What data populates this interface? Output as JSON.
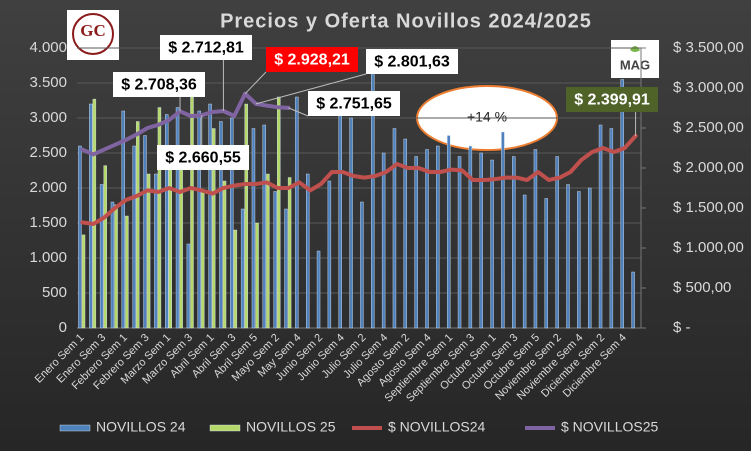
{
  "chart_data": {
    "type": "bar-line",
    "title": "Precios y Oferta Novillos 2024/2025",
    "logos": [
      "GC",
      "MAG"
    ],
    "annotations": [
      "+14 %"
    ],
    "categories": [
      "Enero Sem 1",
      null,
      "Enero Sem 3",
      null,
      "Febrero Sem 1",
      null,
      "Febrero Sem 3",
      null,
      "Marzo Sem 1",
      null,
      "Marzo Sem 3",
      null,
      "Abril Sem 1",
      null,
      "Abril Sem 3",
      null,
      "Abril Sem 5",
      null,
      "Mayo Sem 2",
      null,
      "May Sem 4",
      null,
      "Junio Sem 2",
      null,
      "Junio Sem 4",
      null,
      "Julio Sem 2",
      null,
      "Julio Sem 4",
      null,
      "Agosto Sem 2",
      null,
      "Agosto Sem 4",
      null,
      "Septiembre Sem 1",
      null,
      "Septiembre Sem 3",
      null,
      "Octubre Sem 1",
      null,
      "Octubre Sem 3",
      null,
      "Octubre Sem 5",
      null,
      "Noviembre Sem 2",
      null,
      "Noviembre Sem 4",
      null,
      "Diciembre Sem 2",
      null,
      "Diciembre Sem 4",
      null
    ],
    "ylim": [
      0,
      4000
    ],
    "yticks": [
      0,
      500,
      {
        "value": 1000,
        "label": "1.000"
      },
      {
        "value": 1500,
        "label": "1.500"
      },
      {
        "value": 2000,
        "label": "2.000"
      },
      {
        "value": 2500,
        "label": "2.500"
      },
      {
        "value": 3000,
        "label": "3.000"
      },
      {
        "value": 3500,
        "label": "3.500"
      },
      {
        "value": 4000,
        "label": "4.000"
      }
    ],
    "y2lim": [
      0,
      3500
    ],
    "y2ticks": [
      {
        "value": 0,
        "label": "$ -"
      },
      {
        "value": 500,
        "label": "$ 500,00"
      },
      {
        "value": 1000,
        "label": "$ 1.000,00"
      },
      {
        "value": 1500,
        "label": "$ 1.500,00"
      },
      {
        "value": 2000,
        "label": "$ 2.000,00"
      },
      {
        "value": 2500,
        "label": "$ 2.500,00"
      },
      {
        "value": 3000,
        "label": "$ 3.000,00"
      },
      {
        "value": 3500,
        "label": "$ 3.500,00"
      }
    ],
    "grid": true,
    "legend": "bottom",
    "series": [
      {
        "name": "NOVILLOS 24",
        "type": "bar",
        "color": "#4f81bd",
        "values": [
          2600,
          3200,
          2050,
          1800,
          3100,
          2600,
          2750,
          2200,
          3050,
          3150,
          1200,
          3100,
          3200,
          2950,
          3000,
          1700,
          2850,
          2900,
          1950,
          1700,
          3300,
          2200,
          1100,
          2100,
          3300,
          3000,
          1800,
          3800,
          2500,
          2850,
          2700,
          2450,
          2550,
          2600,
          2750,
          2450,
          2600,
          2500,
          2400,
          2800,
          2450,
          1900,
          2550,
          1850,
          2450,
          2050,
          1950,
          2000,
          2900,
          2850,
          3550,
          800
        ]
      },
      {
        "name": "NOVILLOS 25",
        "type": "bar",
        "color": "#b5d86a",
        "values": [
          1330,
          3270,
          2320,
          1760,
          1600,
          2950,
          2200,
          3150,
          2300,
          2300,
          3300,
          1950,
          2850,
          2100,
          1400,
          3200,
          1500,
          2200,
          3300,
          2150,
          null,
          null,
          null,
          null,
          null,
          null,
          null,
          null,
          null,
          null,
          null,
          null,
          null,
          null,
          null,
          null,
          null,
          null,
          null,
          null,
          null,
          null,
          null,
          null,
          null,
          null,
          null,
          null,
          null,
          null,
          null,
          null
        ]
      },
      {
        "name": "$ NOVILLOS24",
        "type": "line",
        "axis": "y2",
        "color": "#c0504d",
        "values": [
          1320,
          1300,
          1380,
          1500,
          1600,
          1650,
          1720,
          1700,
          1750,
          1700,
          1750,
          1720,
          1680,
          1750,
          1780,
          1800,
          1800,
          1820,
          1750,
          1750,
          1820,
          1720,
          1800,
          1950,
          1950,
          1900,
          1880,
          1900,
          1950,
          2050,
          2000,
          2000,
          1950,
          1950,
          1980,
          1970,
          1850,
          1850,
          1860,
          1880,
          1880,
          1850,
          1950,
          1850,
          1880,
          1950,
          2100,
          2200,
          2250,
          2200,
          2250,
          2399.91
        ],
        "value_labels": [
          null,
          null,
          null,
          null,
          null,
          null,
          null,
          null,
          null,
          null,
          null,
          null,
          null,
          null,
          null,
          null,
          null,
          null,
          null,
          null,
          null,
          null,
          null,
          null,
          null,
          null,
          null,
          null,
          null,
          null,
          null,
          null,
          null,
          null,
          null,
          null,
          null,
          null,
          null,
          null,
          null,
          null,
          null,
          null,
          null,
          null,
          null,
          null,
          null,
          null,
          null,
          "$ 2.399,91"
        ]
      },
      {
        "name": "$ NOVILLOS25",
        "type": "line",
        "axis": "y2",
        "color": "#8064a2",
        "values": [
          2230,
          2170,
          2230,
          2290,
          2350,
          2420,
          2500,
          2540,
          2600,
          2708.36,
          2650,
          2660.55,
          2700,
          2712.81,
          2650,
          2928.21,
          2801.63,
          2780,
          2760,
          2751.65,
          null,
          null,
          null,
          null,
          null,
          null,
          null,
          null,
          null,
          null,
          null,
          null,
          null,
          null,
          null,
          null,
          null,
          null,
          null,
          null,
          null,
          null,
          null,
          null,
          null,
          null,
          null,
          null,
          null,
          null,
          null,
          null
        ],
        "value_labels": [
          null,
          null,
          null,
          null,
          null,
          null,
          null,
          null,
          null,
          "$ 2.708,36",
          null,
          "$ 2.660,55",
          null,
          "$ 2.712,81",
          null,
          "$ 2.928,21",
          "$ 2.801,63",
          null,
          null,
          "$ 2.751,65",
          null,
          null,
          null,
          null,
          null,
          null,
          null,
          null,
          null,
          null,
          null,
          null,
          null,
          null,
          null,
          null,
          null,
          null,
          null,
          null,
          null,
          null,
          null,
          null,
          null,
          null,
          null,
          null,
          null,
          null,
          null,
          null
        ]
      }
    ]
  }
}
